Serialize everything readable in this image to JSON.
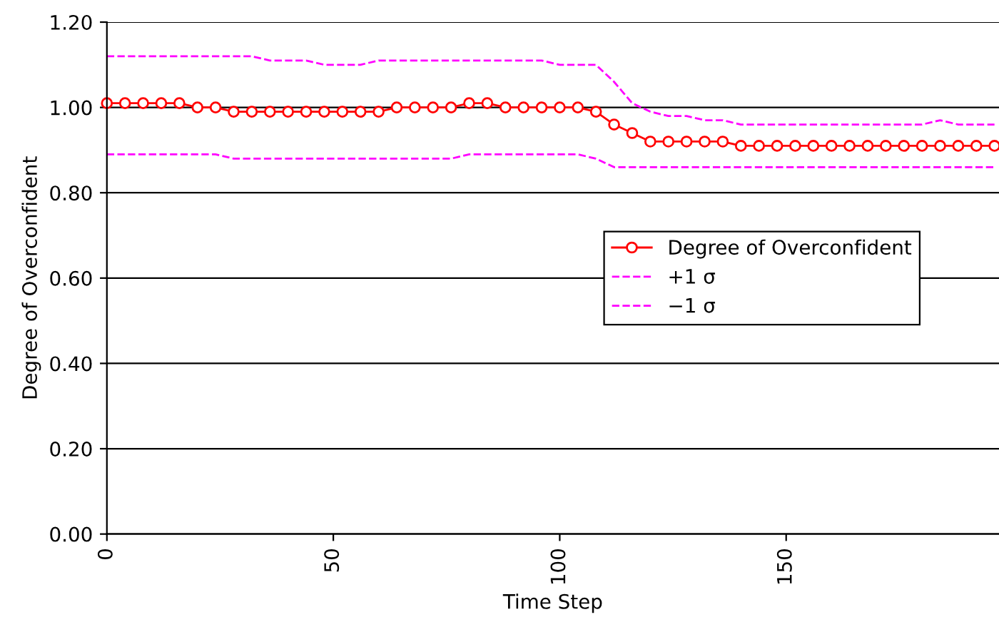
{
  "chart_data": {
    "type": "line",
    "xlabel": "Time Step",
    "ylabel": "Degree of Overconfident",
    "x": [
      0,
      4,
      8,
      12,
      16,
      20,
      24,
      28,
      32,
      36,
      40,
      44,
      48,
      52,
      56,
      60,
      64,
      68,
      72,
      76,
      80,
      84,
      88,
      92,
      96,
      100,
      104,
      108,
      112,
      116,
      120,
      124,
      128,
      132,
      136,
      140,
      144,
      148,
      152,
      156,
      160,
      164,
      168,
      172,
      176,
      180,
      184,
      188,
      192,
      196
    ],
    "series": [
      {
        "name": "Degree of Overconfident",
        "color": "#ff0000",
        "marker": "circle",
        "line_style": "solid",
        "values": [
          1.01,
          1.01,
          1.01,
          1.01,
          1.01,
          1.0,
          1.0,
          0.99,
          0.99,
          0.99,
          0.99,
          0.99,
          0.99,
          0.99,
          0.99,
          0.99,
          1.0,
          1.0,
          1.0,
          1.0,
          1.01,
          1.01,
          1.0,
          1.0,
          1.0,
          1.0,
          1.0,
          0.99,
          0.96,
          0.94,
          0.92,
          0.92,
          0.92,
          0.92,
          0.92,
          0.91,
          0.91,
          0.91,
          0.91,
          0.91,
          0.91,
          0.91,
          0.91,
          0.91,
          0.91,
          0.91,
          0.91,
          0.91,
          0.91,
          0.91
        ]
      },
      {
        "name": "+1 σ",
        "color": "#ff00ff",
        "marker": "none",
        "line_style": "dashed",
        "values": [
          1.12,
          1.12,
          1.12,
          1.12,
          1.12,
          1.12,
          1.12,
          1.12,
          1.12,
          1.11,
          1.11,
          1.11,
          1.1,
          1.1,
          1.1,
          1.11,
          1.11,
          1.11,
          1.11,
          1.11,
          1.11,
          1.11,
          1.11,
          1.11,
          1.11,
          1.1,
          1.1,
          1.1,
          1.06,
          1.01,
          0.99,
          0.98,
          0.98,
          0.97,
          0.97,
          0.96,
          0.96,
          0.96,
          0.96,
          0.96,
          0.96,
          0.96,
          0.96,
          0.96,
          0.96,
          0.96,
          0.97,
          0.96,
          0.96,
          0.96
        ]
      },
      {
        "name": "−1 σ",
        "color": "#ff00ff",
        "marker": "none",
        "line_style": "dashed",
        "values": [
          0.89,
          0.89,
          0.89,
          0.89,
          0.89,
          0.89,
          0.89,
          0.88,
          0.88,
          0.88,
          0.88,
          0.88,
          0.88,
          0.88,
          0.88,
          0.88,
          0.88,
          0.88,
          0.88,
          0.88,
          0.89,
          0.89,
          0.89,
          0.89,
          0.89,
          0.89,
          0.89,
          0.88,
          0.86,
          0.86,
          0.86,
          0.86,
          0.86,
          0.86,
          0.86,
          0.86,
          0.86,
          0.86,
          0.86,
          0.86,
          0.86,
          0.86,
          0.86,
          0.86,
          0.86,
          0.86,
          0.86,
          0.86,
          0.86,
          0.86
        ]
      }
    ],
    "xlim": [
      0,
      197
    ],
    "xticks": [
      0,
      50,
      100,
      150
    ],
    "ylim": [
      0,
      1.2
    ],
    "yticks": [
      {
        "value": 0,
        "label": "0.00"
      },
      {
        "value": 0.2,
        "label": "0.20"
      },
      {
        "value": 0.4,
        "label": "0.40"
      },
      {
        "value": 0.6,
        "label": "0.60"
      },
      {
        "value": 0.8,
        "label": "0.80"
      },
      {
        "value": 1.0,
        "label": "1.00"
      },
      {
        "value": 1.2,
        "label": "1.20"
      }
    ],
    "grid": "y",
    "legend": "center right"
  }
}
